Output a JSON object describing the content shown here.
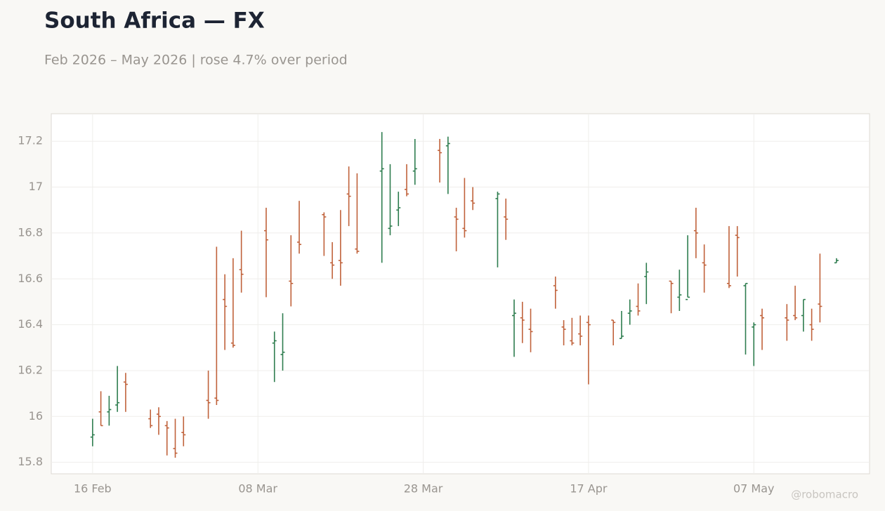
{
  "chart_data": {
    "type": "ohlc",
    "title": "South Africa — FX",
    "subtitle": "Feb 2026 – May 2026 | rose 4.7% over period",
    "credit": "@robomacro",
    "up_color": "#2e7d4f",
    "down_color": "#c0623b",
    "grid": true,
    "x": [
      "2026-02-16",
      "2026-02-17",
      "2026-02-18",
      "2026-02-19",
      "2026-02-20",
      "2026-02-23",
      "2026-02-24",
      "2026-02-25",
      "2026-02-26",
      "2026-02-27",
      "2026-03-02",
      "2026-03-03",
      "2026-03-04",
      "2026-03-05",
      "2026-03-06",
      "2026-03-09",
      "2026-03-10",
      "2026-03-11",
      "2026-03-12",
      "2026-03-13",
      "2026-03-16",
      "2026-03-17",
      "2026-03-18",
      "2026-03-19",
      "2026-03-20",
      "2026-03-23",
      "2026-03-24",
      "2026-03-25",
      "2026-03-26",
      "2026-03-27",
      "2026-03-30",
      "2026-03-31",
      "2026-04-01",
      "2026-04-02",
      "2026-04-03",
      "2026-04-06",
      "2026-04-07",
      "2026-04-08",
      "2026-04-09",
      "2026-04-10",
      "2026-04-13",
      "2026-04-14",
      "2026-04-15",
      "2026-04-16",
      "2026-04-17",
      "2026-04-20",
      "2026-04-21",
      "2026-04-22",
      "2026-04-23",
      "2026-04-24",
      "2026-04-27",
      "2026-04-28",
      "2026-04-29",
      "2026-04-30",
      "2026-05-01",
      "2026-05-04",
      "2026-05-05",
      "2026-05-06",
      "2026-05-07",
      "2026-05-08",
      "2026-05-11",
      "2026-05-12",
      "2026-05-13",
      "2026-05-14",
      "2026-05-15",
      "2026-05-17"
    ],
    "open": [
      15.91,
      16.02,
      16.02,
      16.05,
      16.15,
      15.99,
      16.01,
      15.96,
      15.86,
      15.93,
      16.07,
      16.08,
      16.51,
      16.32,
      16.64,
      16.81,
      16.32,
      16.27,
      16.59,
      16.76,
      16.88,
      16.67,
      16.68,
      16.97,
      16.73,
      17.07,
      16.82,
      16.9,
      16.99,
      17.07,
      17.16,
      17.18,
      16.87,
      16.82,
      16.94,
      16.95,
      16.87,
      16.44,
      16.43,
      16.38,
      16.57,
      16.39,
      16.33,
      16.36,
      16.41,
      16.42,
      16.34,
      16.45,
      16.48,
      16.61,
      16.59,
      16.52,
      16.51,
      16.81,
      16.67,
      16.58,
      16.79,
      16.57,
      16.39,
      16.44,
      16.43,
      16.44,
      16.44,
      16.4,
      16.49,
      16.67
    ],
    "high": [
      15.99,
      16.11,
      16.09,
      16.22,
      16.19,
      16.03,
      16.04,
      15.98,
      15.99,
      16.0,
      16.2,
      16.74,
      16.62,
      16.69,
      16.81,
      16.91,
      16.37,
      16.45,
      16.79,
      16.94,
      16.89,
      16.76,
      16.9,
      17.09,
      17.06,
      17.24,
      17.1,
      16.98,
      17.1,
      17.21,
      17.21,
      17.22,
      16.91,
      17.04,
      17.0,
      16.98,
      16.95,
      16.51,
      16.5,
      16.47,
      16.61,
      16.42,
      16.43,
      16.44,
      16.44,
      16.42,
      16.46,
      16.51,
      16.58,
      16.67,
      16.59,
      16.64,
      16.79,
      16.91,
      16.75,
      16.83,
      16.83,
      16.58,
      16.41,
      16.47,
      16.49,
      16.57,
      16.51,
      16.47,
      16.71,
      16.69
    ],
    "low": [
      15.87,
      15.96,
      15.96,
      16.02,
      16.02,
      15.95,
      15.92,
      15.83,
      15.82,
      15.87,
      15.99,
      16.05,
      16.29,
      16.3,
      16.54,
      16.52,
      16.15,
      16.2,
      16.48,
      16.71,
      16.7,
      16.6,
      16.57,
      16.83,
      16.71,
      16.67,
      16.79,
      16.83,
      16.96,
      17.01,
      17.02,
      16.97,
      16.72,
      16.78,
      16.9,
      16.65,
      16.77,
      16.26,
      16.32,
      16.28,
      16.47,
      16.31,
      16.31,
      16.31,
      16.14,
      16.31,
      16.34,
      16.4,
      16.44,
      16.49,
      16.45,
      16.46,
      16.52,
      16.69,
      16.54,
      16.56,
      16.61,
      16.27,
      16.22,
      16.29,
      16.33,
      16.42,
      16.37,
      16.33,
      16.41,
      16.67
    ],
    "close": [
      15.92,
      15.96,
      16.03,
      16.06,
      16.14,
      15.96,
      16.0,
      15.95,
      15.84,
      15.92,
      16.06,
      16.07,
      16.48,
      16.31,
      16.62,
      16.77,
      16.33,
      16.28,
      16.58,
      16.75,
      16.87,
      16.66,
      16.67,
      16.96,
      16.72,
      17.08,
      16.83,
      16.91,
      16.97,
      17.08,
      17.15,
      17.19,
      16.86,
      16.81,
      16.93,
      16.97,
      16.86,
      16.45,
      16.42,
      16.37,
      16.55,
      16.38,
      16.32,
      16.35,
      16.4,
      16.41,
      16.35,
      16.46,
      16.46,
      16.63,
      16.58,
      16.53,
      16.52,
      16.8,
      16.66,
      16.57,
      16.78,
      16.58,
      16.4,
      16.43,
      16.42,
      16.43,
      16.51,
      16.38,
      16.48,
      16.68
    ],
    "xlim": [
      "2026-02-11",
      "2026-05-21"
    ],
    "xticks": [
      {
        "value": "2026-02-16",
        "label": "16 Feb"
      },
      {
        "value": "2026-03-08",
        "label": "08 Mar"
      },
      {
        "value": "2026-03-28",
        "label": "28 Mar"
      },
      {
        "value": "2026-04-17",
        "label": "17 Apr"
      },
      {
        "value": "2026-05-07",
        "label": "07 May"
      }
    ],
    "ylim": [
      15.75,
      17.32
    ],
    "yticks": [
      15.8,
      16,
      16.2,
      16.4,
      16.6,
      16.8,
      17,
      17.2
    ]
  }
}
